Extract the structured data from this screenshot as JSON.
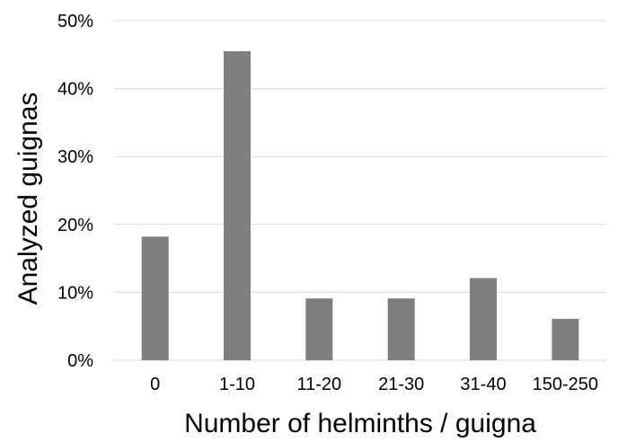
{
  "chart_data": {
    "type": "bar",
    "title": "",
    "xlabel": "Number of helminths / guigna",
    "ylabel": "Analyzed guignas",
    "categories": [
      "0",
      "1-10",
      "11-20",
      "21-30",
      "31-40",
      "150-250"
    ],
    "values": [
      18.2,
      45.5,
      9.1,
      9.1,
      12.1,
      6.1
    ],
    "ylim": [
      0,
      50
    ],
    "yticks": [
      0,
      10,
      20,
      30,
      40,
      50
    ],
    "ytick_labels": [
      "0%",
      "10%",
      "20%",
      "30%",
      "40%",
      "50%"
    ],
    "grid": true,
    "legend": "none",
    "bar_color": "#7f7f7f",
    "grid_color": "#d9d9d9"
  }
}
